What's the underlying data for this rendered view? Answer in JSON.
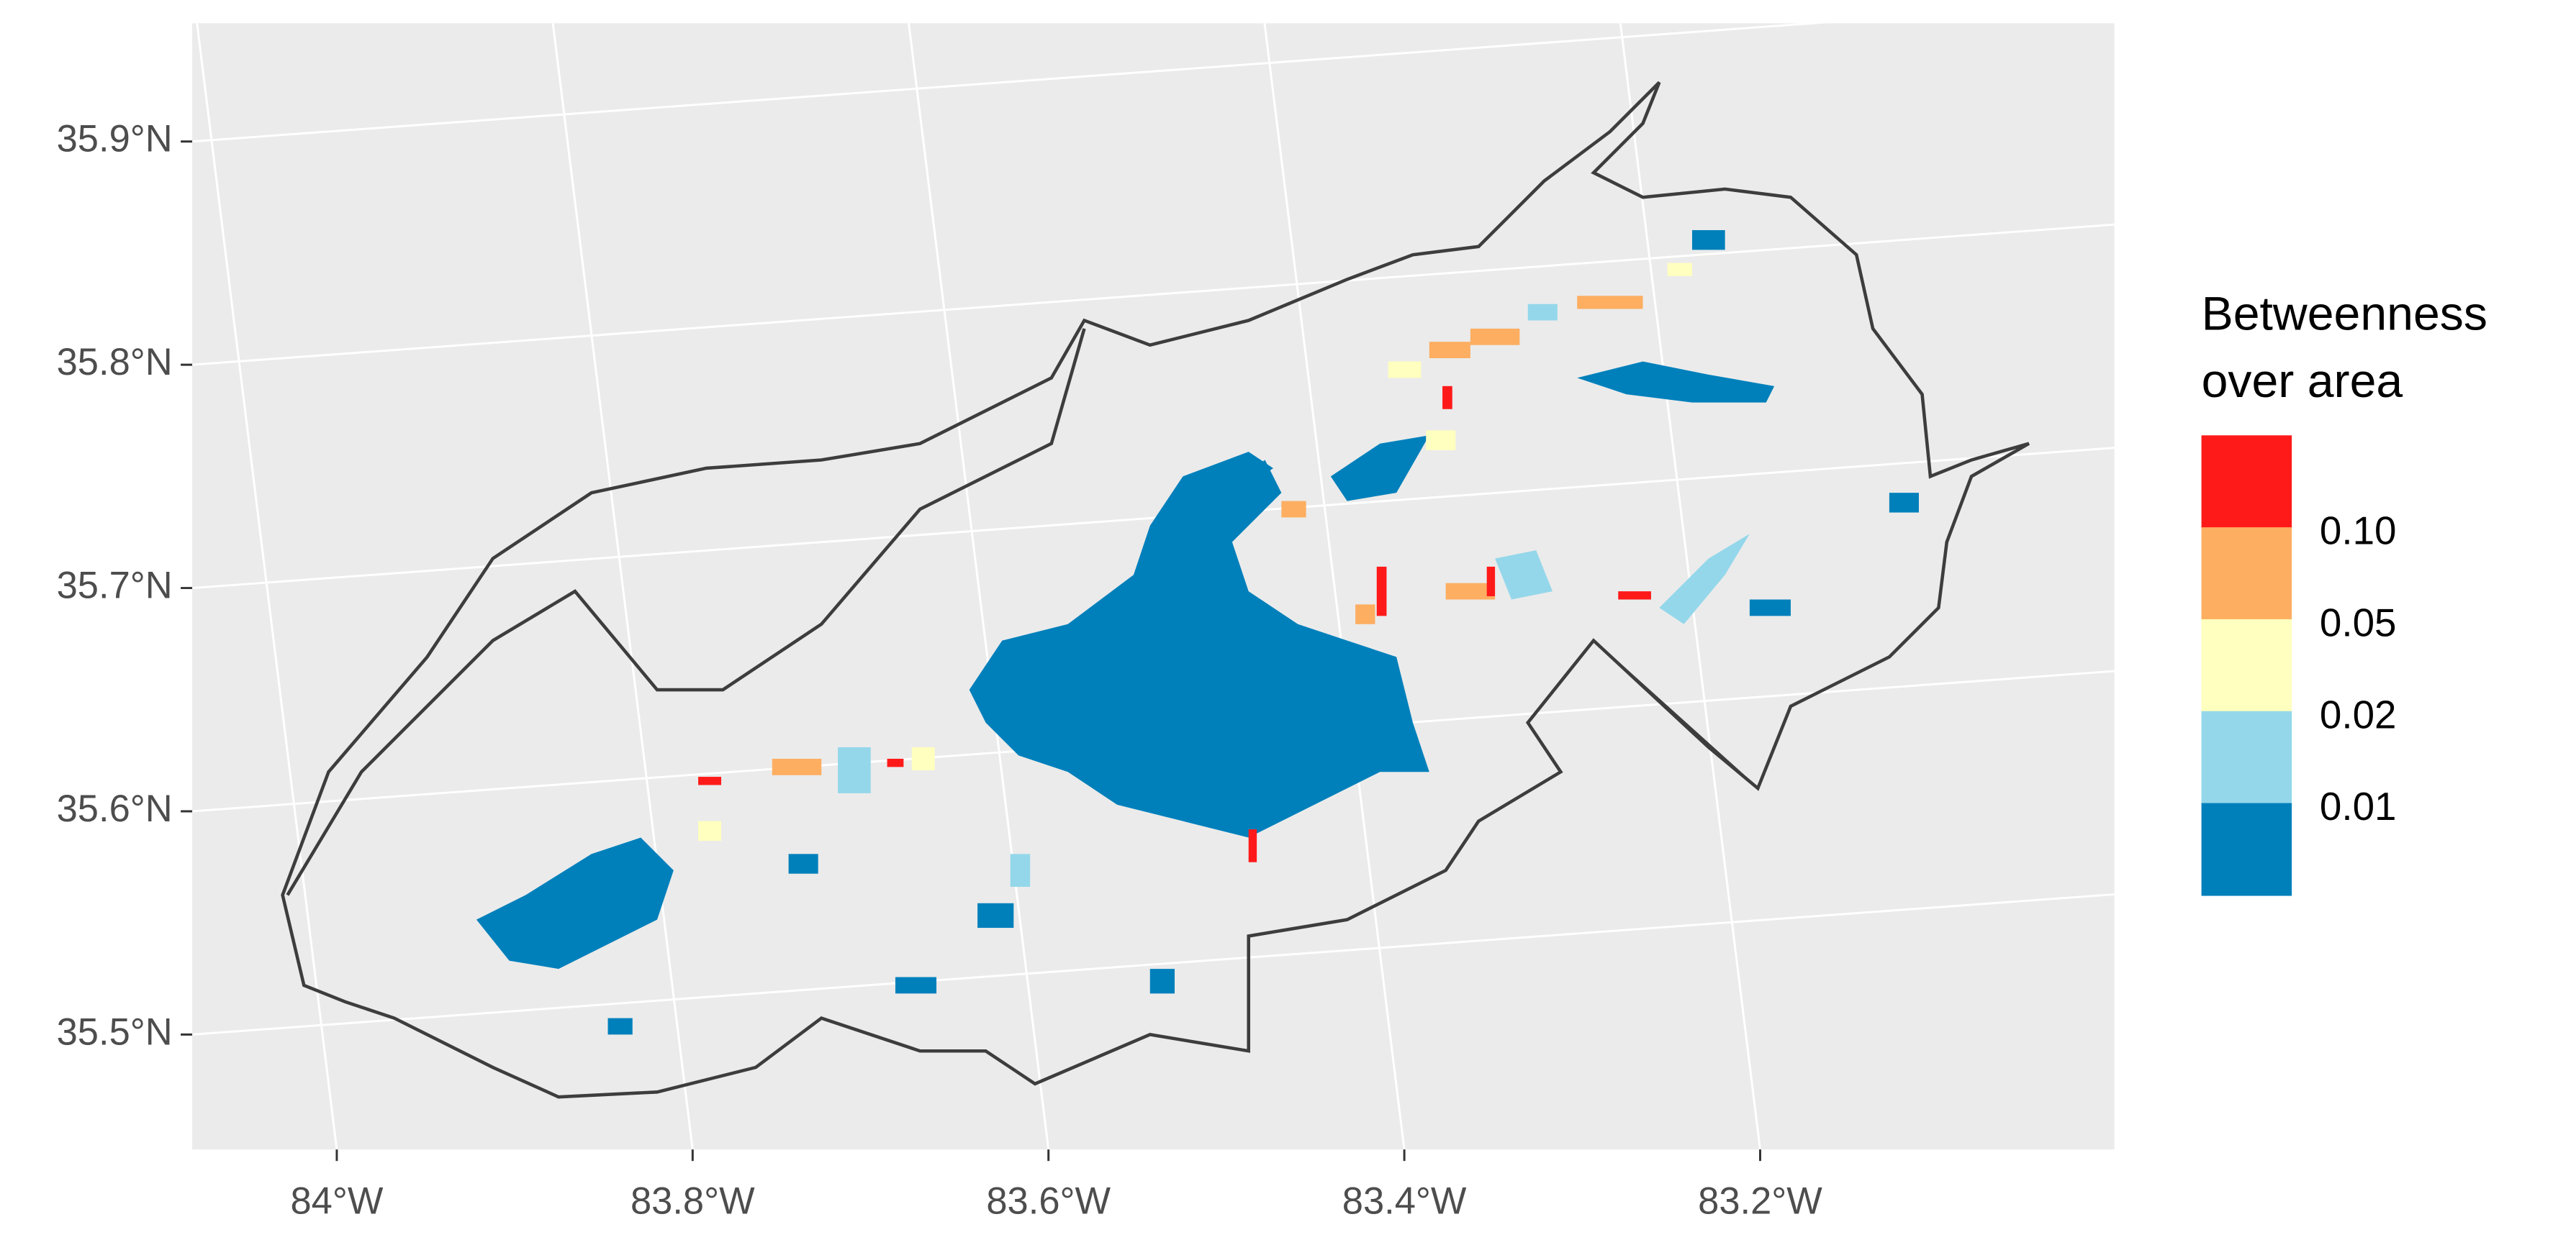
{
  "map": {
    "lat_ticks": [
      {
        "value": 35.5,
        "label": "35.5°N"
      },
      {
        "value": 35.6,
        "label": "35.6°N"
      },
      {
        "value": 35.7,
        "label": "35.7°N"
      },
      {
        "value": 35.8,
        "label": "35.8°N"
      },
      {
        "value": 35.9,
        "label": "35.9°N"
      }
    ],
    "lon_ticks": [
      {
        "value": -84,
        "label": "84°W"
      },
      {
        "value": -83.8,
        "label": "83.8°W"
      },
      {
        "value": -83.6,
        "label": "83.6°W"
      },
      {
        "value": -83.4,
        "label": "83.4°W"
      },
      {
        "value": -83.2,
        "label": "83.2°W"
      }
    ],
    "grid": true,
    "legend": {
      "title": [
        "Betweenness",
        "over area"
      ],
      "colors": [
        "#ff1a1a",
        "#fdae61",
        "#ffffbf",
        "#94d7ea",
        "#0080bb"
      ],
      "breaks": [
        {
          "value": 0.1,
          "label": "0.10"
        },
        {
          "value": 0.05,
          "label": "0.05"
        },
        {
          "value": 0.02,
          "label": "0.02"
        },
        {
          "value": 0.01,
          "label": "0.01"
        }
      ]
    }
  }
}
